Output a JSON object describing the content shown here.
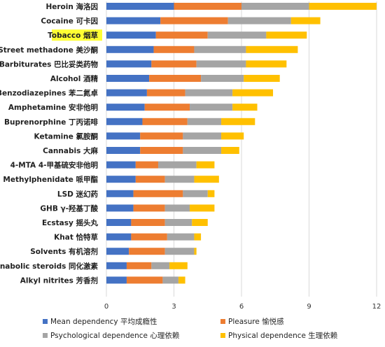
{
  "chart_data": {
    "type": "bar",
    "orientation": "horizontal",
    "stacked": true,
    "title": "",
    "xlabel": "",
    "ylabel": "",
    "xlim": [
      0,
      12
    ],
    "xticks": [
      0,
      3,
      6,
      9,
      12
    ],
    "grid": "vertical",
    "legend_position": "bottom",
    "highlight_category": "Tobacco 烟草",
    "highlight_color": "#ffff33",
    "categories": [
      "Heroin 海洛因",
      "Cocaine 可卡因",
      "Tobacco 烟草",
      "Street methadone 美沙酮",
      "Barbiturates 巴比妥类药物",
      "Alcohol 酒精",
      "Benzodiazepines 苯二氮卓",
      "Amphetamine 安非他明",
      "Buprenorphine 丁丙诺啡",
      "Ketamine 氯胺酮",
      "Cannabis 大麻",
      "4-MTA 4-甲基硫安非他明",
      "Methylphenidate 哌甲酯",
      "LSD 迷幻药",
      "GHB γ-羟基丁酸",
      "Ecstasy 摇头丸",
      "Khat 恰特草",
      "Solvents 有机溶剂",
      "Anabolic steroids 同化激素",
      "Alkyl nitrites 芳香剂"
    ],
    "series": [
      {
        "name": "Mean dependency 平均成瘾性",
        "color": "#4472c4",
        "values": [
          3.0,
          2.4,
          2.2,
          2.1,
          2.0,
          1.9,
          1.8,
          1.7,
          1.6,
          1.5,
          1.5,
          1.3,
          1.3,
          1.2,
          1.2,
          1.1,
          1.1,
          1.0,
          0.9,
          0.9
        ]
      },
      {
        "name": "Pleasure 愉悦感",
        "color": "#ed7d31",
        "values": [
          3.0,
          3.0,
          2.3,
          1.8,
          2.0,
          2.3,
          1.7,
          2.0,
          2.0,
          1.9,
          1.9,
          1.0,
          1.3,
          2.2,
          1.4,
          1.5,
          1.6,
          1.6,
          1.1,
          1.6
        ]
      },
      {
        "name": "Psychological dependence 心理依赖",
        "color": "#a5a5a5",
        "values": [
          3.0,
          2.8,
          2.6,
          2.3,
          2.2,
          1.9,
          2.1,
          1.9,
          1.5,
          1.7,
          1.7,
          1.7,
          1.3,
          1.1,
          1.1,
          1.2,
          1.2,
          1.3,
          0.8,
          0.7
        ]
      },
      {
        "name": "Physical dependence 生理依赖",
        "color": "#ffc000",
        "values": [
          3.0,
          1.3,
          1.8,
          2.3,
          1.8,
          1.6,
          1.8,
          1.1,
          1.5,
          1.0,
          0.8,
          0.8,
          1.1,
          0.3,
          1.1,
          0.7,
          0.3,
          0.1,
          0.8,
          0.3
        ]
      }
    ]
  }
}
